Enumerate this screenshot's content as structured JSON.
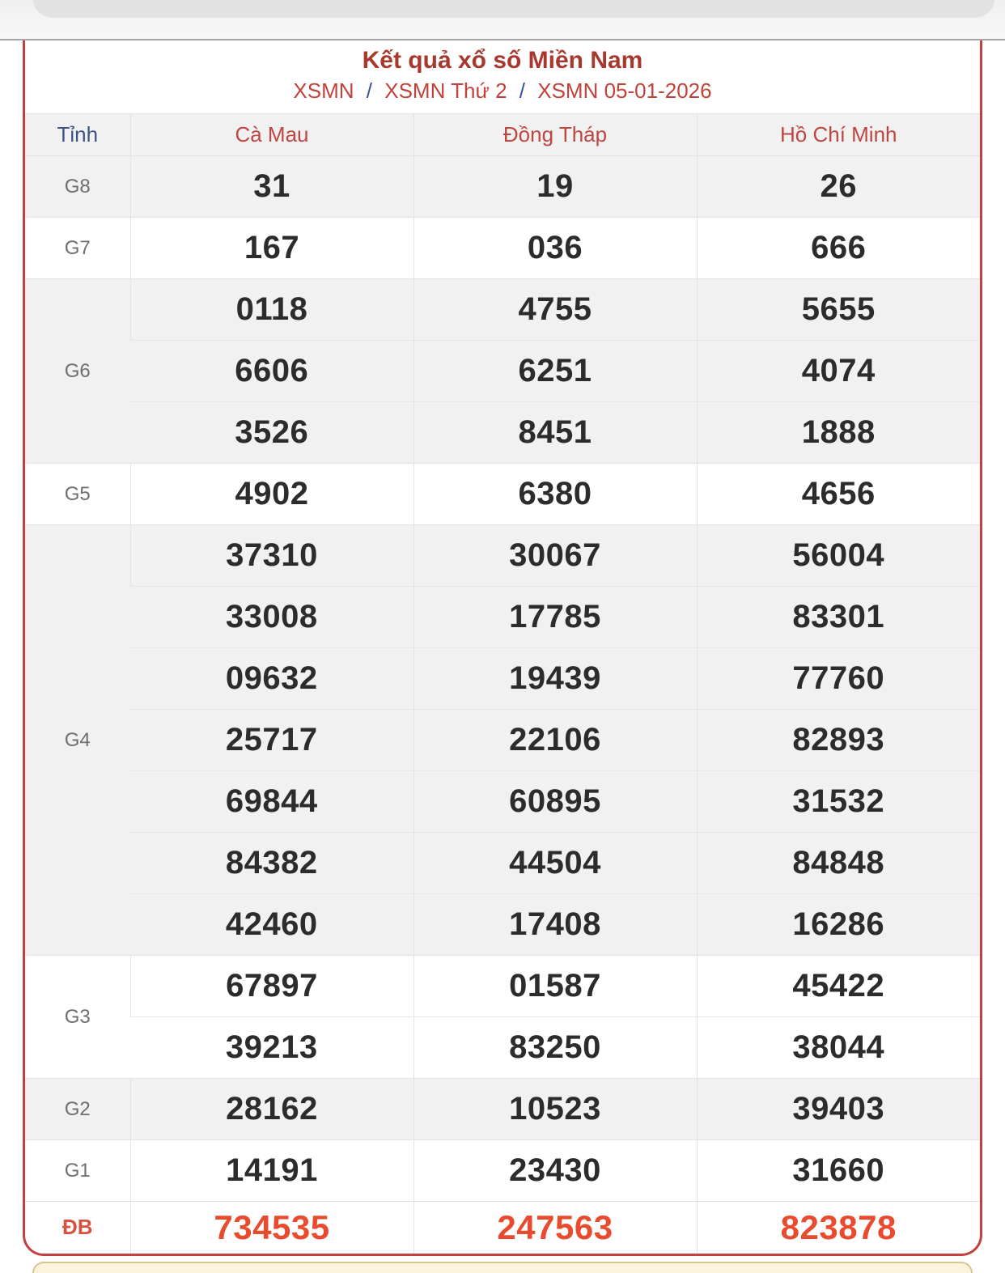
{
  "header": {
    "title": "Kết quả xổ số Miền Nam",
    "breadcrumb": {
      "separator": "/",
      "items": [
        "XSMN",
        "XSMN Thứ 2",
        "XSMN 05-01-2026"
      ]
    }
  },
  "results_table": {
    "province_column_label": "Tỉnh",
    "provinces": [
      "Cà Mau",
      "Đồng Tháp",
      "Hồ Chí Minh"
    ],
    "prize_groups": [
      {
        "label": "G8",
        "shaded": true,
        "special": false,
        "subrows": [
          [
            "31",
            "19",
            "26"
          ]
        ]
      },
      {
        "label": "G7",
        "shaded": false,
        "special": false,
        "subrows": [
          [
            "167",
            "036",
            "666"
          ]
        ]
      },
      {
        "label": "G6",
        "shaded": true,
        "special": false,
        "subrows": [
          [
            "0118",
            "4755",
            "5655"
          ],
          [
            "6606",
            "6251",
            "4074"
          ],
          [
            "3526",
            "8451",
            "1888"
          ]
        ]
      },
      {
        "label": "G5",
        "shaded": false,
        "special": false,
        "subrows": [
          [
            "4902",
            "6380",
            "4656"
          ]
        ]
      },
      {
        "label": "G4",
        "shaded": true,
        "special": false,
        "subrows": [
          [
            "37310",
            "30067",
            "56004"
          ],
          [
            "33008",
            "17785",
            "83301"
          ],
          [
            "09632",
            "19439",
            "77760"
          ],
          [
            "25717",
            "22106",
            "82893"
          ],
          [
            "69844",
            "60895",
            "31532"
          ],
          [
            "84382",
            "44504",
            "84848"
          ],
          [
            "42460",
            "17408",
            "16286"
          ]
        ]
      },
      {
        "label": "G3",
        "shaded": false,
        "special": false,
        "subrows": [
          [
            "67897",
            "01587",
            "45422"
          ],
          [
            "39213",
            "83250",
            "38044"
          ]
        ]
      },
      {
        "label": "G2",
        "shaded": true,
        "special": false,
        "subrows": [
          [
            "28162",
            "10523",
            "39403"
          ]
        ]
      },
      {
        "label": "G1",
        "shaded": false,
        "special": false,
        "subrows": [
          [
            "14191",
            "23430",
            "31660"
          ]
        ]
      },
      {
        "label": "ĐB",
        "shaded": false,
        "special": true,
        "subrows": [
          [
            "734535",
            "247563",
            "823878"
          ]
        ]
      }
    ]
  },
  "colors": {
    "title": "#a8382d",
    "breadcrumb_link": "#c2423a",
    "breadcrumb_sep": "#33519e",
    "tinh_header": "#3c5387",
    "province_header": "#bf4540",
    "prize_label": "#6e6e73",
    "value": "#2c2c2e",
    "special_value": "#e94b2e",
    "special_label": "#d9523f",
    "card_border": "#c43f3f",
    "shaded_row": "#f1f1f2",
    "header_bg": "#f1f1f2",
    "grid_line": "#e3e3e5",
    "subgrid_line": "#e6e6e8",
    "strip_line": "#a6a6a6",
    "handle_bg": "#e3e2e3",
    "cream_bg": "#fbf3dc",
    "cream_border": "#dbc58f"
  }
}
